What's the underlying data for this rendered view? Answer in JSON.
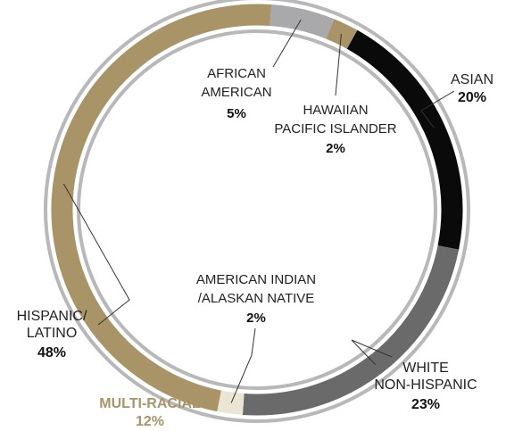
{
  "chart_data": {
    "type": "donut",
    "total_percent": 100,
    "slices": [
      {
        "key": "african_american",
        "label_lines": [
          "AFRICAN",
          "AMERICAN"
        ],
        "value_label": "5%",
        "value": 5,
        "color": "#a9a9ab"
      },
      {
        "key": "hawaiian",
        "label_lines": [
          "HAWAIIAN",
          "PACIFIC ISLANDER"
        ],
        "value_label": "2%",
        "value": 2,
        "color": "#a89466"
      },
      {
        "key": "asian",
        "label_lines": [
          "ASIAN"
        ],
        "value_label": "20%",
        "value": 20,
        "color": "#0a0a0a"
      },
      {
        "key": "white",
        "label_lines": [
          "WHITE",
          "NON-HISPANIC"
        ],
        "value_label": "23%",
        "value": 23,
        "color": "#6a6a6a"
      },
      {
        "key": "american_indian",
        "label_lines": [
          "AMERICAN INDIAN",
          "/ALASKAN NATIVE"
        ],
        "value_label": "2%",
        "value": 2,
        "color": "#ebe6d3"
      },
      {
        "key": "hispanic",
        "label_lines": [
          "HISPANIC/",
          "LATINO"
        ],
        "value_label": "48%",
        "value": 48,
        "color": "#a89466"
      }
    ],
    "extra_label": {
      "key": "multi_racial",
      "label": "MULTI-RACIAL",
      "value_label": "12%",
      "value": 12,
      "color": "#a89466"
    },
    "ring_color": "#b8b8ba"
  }
}
